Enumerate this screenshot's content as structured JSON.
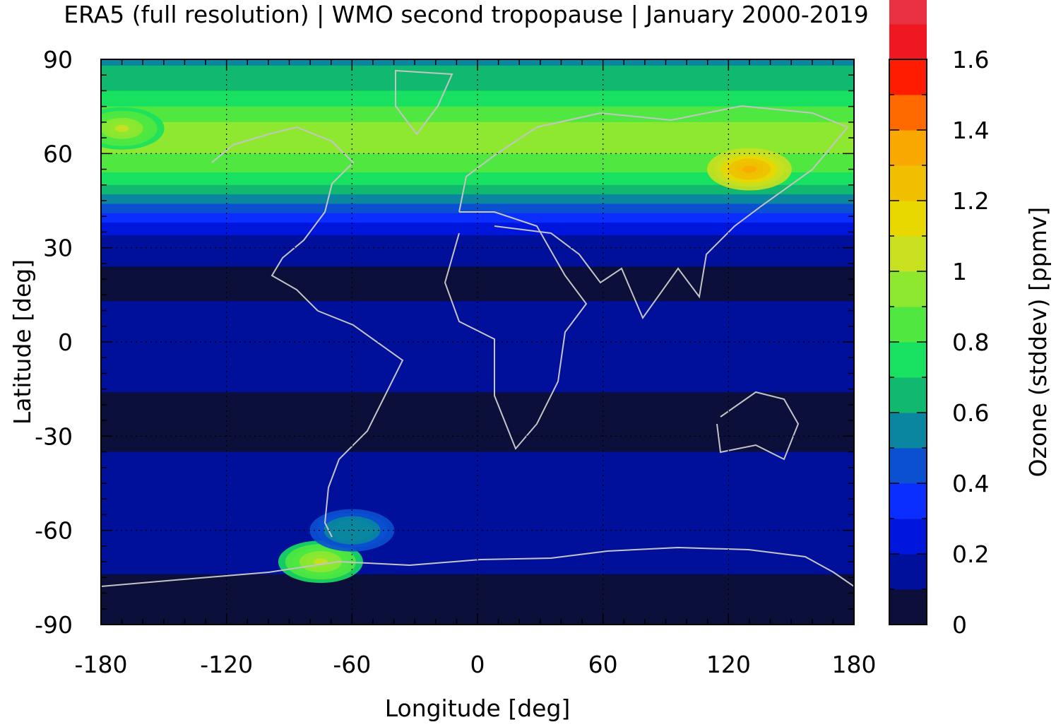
{
  "chart_data": {
    "type": "heatmap",
    "title": "ERA5 (full resolution) | WMO second tropopause | January 2000-2019",
    "xlabel": "Longitude [deg]",
    "ylabel": "Latitude [deg]",
    "xlim": [
      -180,
      180
    ],
    "ylim": [
      -90,
      90
    ],
    "x_ticks": [
      -180,
      -120,
      -60,
      0,
      60,
      120,
      180
    ],
    "y_ticks": [
      90,
      60,
      30,
      0,
      -30,
      -60,
      -90
    ],
    "x_tick_labels": [
      "-180",
      "-120",
      "-60",
      "0",
      "60",
      "120",
      "180"
    ],
    "y_tick_labels": [
      "90",
      "60",
      "30",
      "0",
      "-30",
      "-60",
      "-90"
    ],
    "grid": true,
    "colorbar": {
      "label": "Ozone (stddev) [ppmv]",
      "min": 0,
      "max": 1.6,
      "step": 0.1,
      "tick_values": [
        1.6,
        1.4,
        1.2,
        1,
        0.8,
        0.6,
        0.4,
        0.2,
        0
      ],
      "tick_labels": [
        "1.6",
        "1.4",
        "1.2",
        "1",
        "0.8",
        "0.6",
        "0.4",
        "0.2",
        "0"
      ],
      "colors": [
        "#0b0f3a",
        "#00109a",
        "#0016dd",
        "#0a2eff",
        "#0a50d0",
        "#0a86a0",
        "#10b870",
        "#18e060",
        "#50e840",
        "#8ee830",
        "#c8e020",
        "#e8d800",
        "#f0c000",
        "#f8a800",
        "#ff6a00",
        "#ff1c00",
        "#f01820",
        "#e83040",
        "#f07878",
        "#ffcccc"
      ]
    },
    "zonal_mean_profile": {
      "description_lat": [
        90,
        80,
        75,
        70,
        65,
        60,
        55,
        50,
        45,
        40,
        35,
        30,
        20,
        10,
        0,
        -10,
        -20,
        -30,
        -40,
        -50,
        -60,
        -70,
        -80,
        -90
      ],
      "values": [
        0.58,
        0.7,
        0.8,
        0.9,
        0.92,
        0.9,
        0.82,
        0.7,
        0.55,
        0.35,
        0.22,
        0.15,
        0.06,
        0.12,
        0.2,
        0.15,
        0.06,
        0.08,
        0.12,
        0.18,
        0.2,
        0.14,
        0.05,
        0.02
      ]
    },
    "hotspots": [
      {
        "lon": 130,
        "lat": 55,
        "value": 1.35
      },
      {
        "lon": -170,
        "lat": 68,
        "value": 1.05
      },
      {
        "lon": -75,
        "lat": -70,
        "value": 1.0
      },
      {
        "lon": -60,
        "lat": -60,
        "value": 0.6
      }
    ]
  }
}
